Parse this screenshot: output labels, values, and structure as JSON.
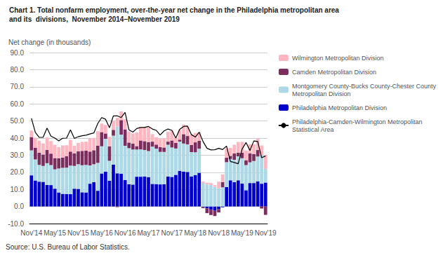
{
  "chart_data": {
    "type": "bar",
    "stacked": true,
    "title": "Chart 1. Total nonfarm employment, over-the-year net change in the Philadelphia metropolitan area",
    "subtitle": "and its  divisions,  November 2014–November 2019",
    "ylabel": "Net change (in thousands)",
    "annotations": [
      "Source: U.S. Bureau of Labor Statistics."
    ],
    "grid": true,
    "legend": "right",
    "ylim": [
      -10.0,
      90.0
    ],
    "yticks": [
      {
        "value": -10,
        "label": "-10.0"
      },
      {
        "value": 0,
        "label": "0.0"
      },
      {
        "value": 10,
        "label": "10.0"
      },
      {
        "value": 20,
        "label": "20.0"
      },
      {
        "value": 30,
        "label": "30.0"
      },
      {
        "value": 40,
        "label": "40.0"
      },
      {
        "value": 50,
        "label": "50.0"
      },
      {
        "value": 60,
        "label": "60.0"
      },
      {
        "value": 70,
        "label": "70.0"
      },
      {
        "value": 80,
        "label": "80.0"
      },
      {
        "value": 90,
        "label": "90.0"
      }
    ],
    "categories": [
      "Nov'14",
      null,
      null,
      null,
      null,
      null,
      "May'15",
      null,
      null,
      null,
      null,
      null,
      "Nov'15",
      null,
      null,
      null,
      null,
      null,
      "May'16",
      null,
      null,
      null,
      null,
      null,
      "Nov'16",
      null,
      null,
      null,
      null,
      null,
      "May'17",
      null,
      null,
      null,
      null,
      null,
      "Nov'17",
      null,
      null,
      null,
      null,
      null,
      "May'18",
      null,
      null,
      null,
      null,
      null,
      "Nov'18",
      null,
      null,
      null,
      null,
      null,
      "May'19",
      null,
      null,
      null,
      null,
      null,
      "Nov'19"
    ],
    "series": [
      {
        "name": "Philadelphia Metropolitan Division",
        "type": "bar",
        "color": "#0000CC",
        "values": [
          18.2,
          15.2,
          14.5,
          14.4,
          12.6,
          12.5,
          10.4,
          8.2,
          7.4,
          7.3,
          7.2,
          10.4,
          10.3,
          8.3,
          8.2,
          13.3,
          14.2,
          9.2,
          19.3,
          20.3,
          15.1,
          24.5,
          19.4,
          19.1,
          15.5,
          13.0,
          12.8,
          17.4,
          17.4,
          17.6,
          17.2,
          13.2,
          13.1,
          12.9,
          13.0,
          17.5,
          17.3,
          18.5,
          20.8,
          20.4,
          20.2,
          17.6,
          18.4,
          19.7,
          -0.4,
          -1.1,
          -1.9,
          -2.5,
          -1.5,
          -0.5,
          11.4,
          15.3,
          14.2,
          15.3,
          13.4,
          9.5,
          13.7,
          13.7,
          14.7,
          13.3,
          14.0
        ]
      },
      {
        "name": "Montgomery County-Bucks County-Chester County\nMetropolitan Division",
        "type": "bar",
        "color": "#ADD8E6",
        "values": [
          14.6,
          12.3,
          9.8,
          9.3,
          12.7,
          11.7,
          11.3,
          14.0,
          15.2,
          15.4,
          16.7,
          13.3,
          14.4,
          15.8,
          16.1,
          10.7,
          10.5,
          16.3,
          15.9,
          19.3,
          11.6,
          16.9,
          27.4,
          22.9,
          20.0,
          21.1,
          20.5,
          15.9,
          16.0,
          15.4,
          15.2,
          21.8,
          20.7,
          19.0,
          18.9,
          18.6,
          17.2,
          15.4,
          17.1,
          16.4,
          16.1,
          14.2,
          13.3,
          14.1,
          13.8,
          12.9,
          12.5,
          11.5,
          10.6,
          11.2,
          14.5,
          12.5,
          13.1,
          14.0,
          14.8,
          14.7,
          12.1,
          12.9,
          14.5,
          16.9,
          8.0
        ]
      },
      {
        "name": "Camden Metropolitan Division",
        "type": "bar",
        "color": "#7B2D5E",
        "values": [
          7.8,
          6.8,
          7.1,
          6.7,
          7.8,
          6.7,
          6.6,
          6.0,
          6.0,
          6.7,
          8.2,
          7.3,
          7.5,
          8.4,
          8.4,
          8.1,
          8.2,
          10.0,
          8.3,
          3.1,
          8.4,
          3.4,
          -0.4,
          8.5,
          9.6,
          3.3,
          3.5,
          2.0,
          5.2,
          5.2,
          5.3,
          2.9,
          2.4,
          2.8,
          2.6,
          1.8,
          4.1,
          3.3,
          1.2,
          5.5,
          4.9,
          4.2,
          5.8,
          4.6,
          -0.6,
          -2.8,
          -3.1,
          -3.1,
          -2.0,
          3.0,
          2.6,
          1.8,
          3.7,
          2.2,
          3.3,
          2.8,
          5.3,
          4.0,
          3.8,
          -1.2,
          -4.9
        ]
      },
      {
        "name": "Wilmington Metropolitan Division",
        "type": "bar",
        "color": "#FFB6C1",
        "values": [
          3.8,
          5.9,
          7.0,
          6.5,
          7.2,
          7.3,
          7.8,
          6.5,
          7.1,
          6.4,
          6.8,
          4.5,
          5.0,
          5.3,
          5.2,
          7.6,
          7.2,
          8.5,
          5.0,
          5.0,
          5.6,
          5.2,
          5.0,
          5.1,
          5.9,
          6.5,
          5.9,
          8.0,
          7.9,
          8.4,
          8.5,
          4.4,
          4.3,
          4.8,
          5.4,
          5.8,
          5.6,
          3.0,
          5.7,
          5.5,
          5.5,
          6.0,
          5.5,
          5.0,
          0.8,
          1.0,
          1.2,
          1.0,
          3.9,
          4.5,
          5.4,
          4.7,
          5.1,
          6.2,
          6.3,
          5.7,
          5.2,
          5.7,
          6.8,
          5.5,
          8.0
        ]
      },
      {
        "name": "Philadelphia-Camden-Wilmington Metropolitan\nStatistical Area",
        "type": "line",
        "color": "#000000",
        "values": [
          51.5,
          43.3,
          40.4,
          40.5,
          45.8,
          41.1,
          40.0,
          38.4,
          39.9,
          40.0,
          44.8,
          39.8,
          40.8,
          41.4,
          41.7,
          42.4,
          43.0,
          48.5,
          52.0,
          51.0,
          46.0,
          53.0,
          53.0,
          52.0,
          55.0,
          44.8,
          43.5,
          45.6,
          46.2,
          46.2,
          46.8,
          45.3,
          44.5,
          41.8,
          44.2,
          45.3,
          44.5,
          40.0,
          45.1,
          46.8,
          47.0,
          42.0,
          40.6,
          43.4,
          37.9,
          34.0,
          33.1,
          33.2,
          34.0,
          33.3,
          35.3,
          26.3,
          25.7,
          25.0,
          33.6,
          37.4,
          32.7,
          38.3,
          38.0,
          28.5,
          29.5
        ]
      }
    ]
  }
}
